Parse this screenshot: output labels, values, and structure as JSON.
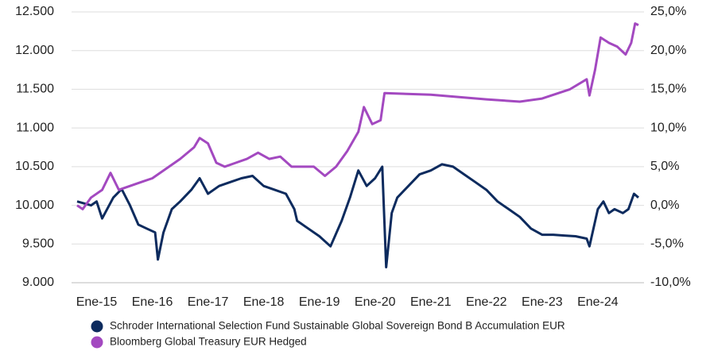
{
  "chart_data": {
    "type": "line",
    "xlim": [
      2014.65,
      2024.73
    ],
    "xticks": [
      {
        "value": 2015,
        "label": "Ene-15"
      },
      {
        "value": 2016,
        "label": "Ene-16"
      },
      {
        "value": 2017,
        "label": "Ene-17"
      },
      {
        "value": 2018,
        "label": "Ene-18"
      },
      {
        "value": 2019,
        "label": "Ene-19"
      },
      {
        "value": 2020,
        "label": "Ene-20"
      },
      {
        "value": 2021,
        "label": "Ene-21"
      },
      {
        "value": 2022,
        "label": "Ene-22"
      },
      {
        "value": 2023,
        "label": "Ene-23"
      },
      {
        "value": 2024,
        "label": "Ene-24"
      }
    ],
    "ylim": [
      9000,
      12500
    ],
    "yticks": [
      {
        "value": 9000,
        "label": "9.000"
      },
      {
        "value": 9500,
        "label": "9.500"
      },
      {
        "value": 10000,
        "label": "10.000"
      },
      {
        "value": 10500,
        "label": "10.500"
      },
      {
        "value": 11000,
        "label": "11.000"
      },
      {
        "value": 11500,
        "label": "11.500"
      },
      {
        "value": 12000,
        "label": "12.000"
      },
      {
        "value": 12500,
        "label": "12.500"
      }
    ],
    "y2lim": [
      -10,
      25
    ],
    "y2ticks": [
      {
        "value": -10,
        "label": "-10,0%"
      },
      {
        "value": -5,
        "label": "-5,0%"
      },
      {
        "value": 0,
        "label": "0,0%"
      },
      {
        "value": 5,
        "label": "5,0%"
      },
      {
        "value": 10,
        "label": "10,0%"
      },
      {
        "value": 15,
        "label": "15,0%"
      },
      {
        "value": 20,
        "label": "20,0%"
      },
      {
        "value": 25,
        "label": "25,0%"
      }
    ],
    "grid": true,
    "legend": "bottom",
    "series": [
      {
        "name": "Schroder International Selection Fund Sustainable Global Sovereign Bond B Accumulation EUR",
        "color": "#0d2b5e",
        "x": [
          2014.65,
          2014.9,
          2015.0,
          2015.1,
          2015.3,
          2015.45,
          2015.6,
          2015.75,
          2015.9,
          2016.05,
          2016.1,
          2016.2,
          2016.35,
          2016.5,
          2016.7,
          2016.85,
          2017.0,
          2017.2,
          2017.4,
          2017.6,
          2017.8,
          2018.0,
          2018.2,
          2018.4,
          2018.55,
          2018.6,
          2018.8,
          2019.0,
          2019.2,
          2019.4,
          2019.55,
          2019.7,
          2019.85,
          2020.0,
          2020.13,
          2020.2,
          2020.3,
          2020.4,
          2020.6,
          2020.8,
          2021.0,
          2021.2,
          2021.4,
          2021.6,
          2021.8,
          2022.0,
          2022.2,
          2022.4,
          2022.6,
          2022.8,
          2023.0,
          2023.2,
          2023.4,
          2023.6,
          2023.8,
          2023.85,
          2024.0,
          2024.1,
          2024.2,
          2024.3,
          2024.45,
          2024.55,
          2024.65,
          2024.73
        ],
        "values": [
          10050,
          10000,
          10050,
          9830,
          10100,
          10210,
          10000,
          9750,
          9700,
          9650,
          9300,
          9650,
          9950,
          10050,
          10200,
          10350,
          10150,
          10250,
          10300,
          10350,
          10380,
          10250,
          10200,
          10150,
          9950,
          9800,
          9700,
          9600,
          9470,
          9800,
          10100,
          10450,
          10250,
          10350,
          10500,
          9200,
          9900,
          10100,
          10250,
          10400,
          10450,
          10530,
          10500,
          10400,
          10300,
          10200,
          10050,
          9950,
          9850,
          9700,
          9620,
          9620,
          9610,
          9600,
          9570,
          9470,
          9950,
          10050,
          9900,
          9950,
          9900,
          9950,
          10150,
          10100
        ]
      },
      {
        "name": "Bloomberg Global Treasury EUR Hedged",
        "color": "#a349c0",
        "axis": "y2",
        "x": [
          2014.65,
          2014.75,
          2014.9,
          2015.1,
          2015.25,
          2015.4,
          2015.6,
          2015.8,
          2016.0,
          2016.3,
          2016.5,
          2016.75,
          2016.85,
          2017.0,
          2017.15,
          2017.3,
          2017.5,
          2017.7,
          2017.9,
          2018.1,
          2018.3,
          2018.5,
          2018.7,
          2018.9,
          2019.1,
          2019.3,
          2019.5,
          2019.7,
          2019.8,
          2019.95,
          2020.1,
          2020.17,
          2021.0,
          2022.0,
          2022.6,
          2023.0,
          2023.5,
          2023.8,
          2023.85,
          2023.95,
          2024.05,
          2024.2,
          2024.35,
          2024.5,
          2024.6,
          2024.67,
          2024.73
        ],
        "values": [
          0,
          -0.5,
          1.0,
          2.0,
          4.2,
          2.0,
          2.5,
          3.0,
          3.5,
          5.0,
          6.0,
          7.5,
          8.7,
          8.0,
          5.5,
          5.0,
          5.5,
          6.0,
          6.8,
          6.0,
          6.3,
          5.0,
          5.0,
          5.0,
          3.8,
          5.0,
          7.0,
          9.5,
          12.7,
          10.5,
          11.0,
          14.5,
          14.3,
          13.7,
          13.4,
          13.8,
          15.0,
          16.3,
          14.2,
          17.5,
          21.7,
          21.0,
          20.5,
          19.5,
          21.0,
          23.5,
          23.3
        ]
      }
    ]
  }
}
